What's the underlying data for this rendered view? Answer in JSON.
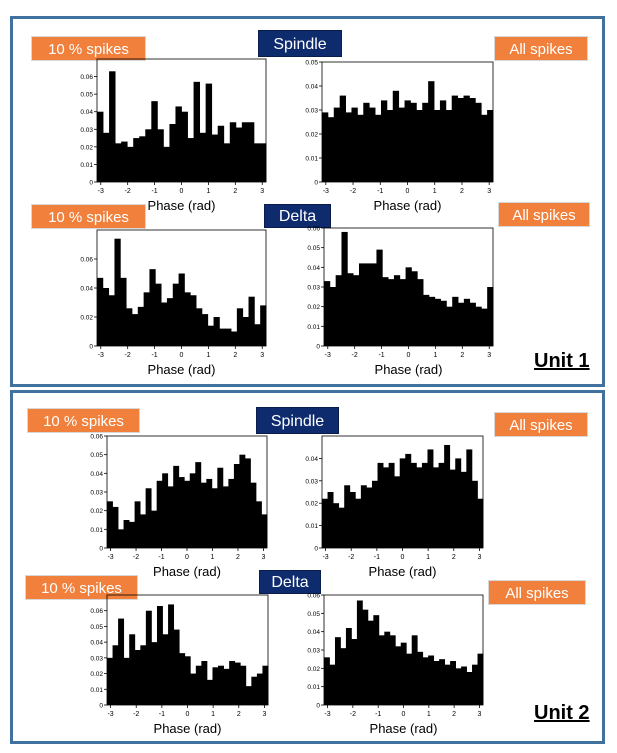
{
  "labels": {
    "ten_percent": "10 % spikes",
    "all_spikes": "All spikes",
    "spindle": "Spindle",
    "delta": "Delta",
    "unit1": "Unit 1",
    "unit2": "Unit 2"
  },
  "colors": {
    "border": "#41729f",
    "label_bg": "#f0803c",
    "osc_bg": "#0e2b6e",
    "bar": "#000000"
  },
  "chart_data": [
    {
      "id": "u1-spindle-10",
      "type": "bar",
      "xlabel": "Phase (rad)",
      "ylabel": "",
      "xlim": [
        -3.14,
        3.14
      ],
      "ylim": [
        0,
        0.07
      ],
      "xticks": [
        -3,
        -2,
        -1,
        0,
        1,
        2,
        3
      ],
      "yticks": [
        0,
        0.01,
        0.02,
        0.03,
        0.04,
        0.05,
        0.06
      ],
      "values": [
        0.04,
        0.028,
        0.063,
        0.022,
        0.023,
        0.02,
        0.025,
        0.026,
        0.03,
        0.046,
        0.03,
        0.02,
        0.033,
        0.043,
        0.04,
        0.025,
        0.057,
        0.028,
        0.056,
        0.027,
        0.032,
        0.022,
        0.034,
        0.031,
        0.034,
        0.034,
        0.022,
        0.022
      ]
    },
    {
      "id": "u1-spindle-all",
      "type": "bar",
      "xlabel": "Phase (rad)",
      "ylabel": "",
      "xlim": [
        -3.14,
        3.14
      ],
      "ylim": [
        0,
        0.05
      ],
      "xticks": [
        -3,
        -2,
        -1,
        0,
        1,
        2,
        3
      ],
      "yticks": [
        0,
        0.01,
        0.02,
        0.03,
        0.04,
        0.05
      ],
      "values": [
        0.029,
        0.027,
        0.031,
        0.036,
        0.029,
        0.031,
        0.028,
        0.033,
        0.031,
        0.028,
        0.034,
        0.03,
        0.038,
        0.031,
        0.034,
        0.033,
        0.03,
        0.033,
        0.042,
        0.03,
        0.034,
        0.03,
        0.036,
        0.035,
        0.036,
        0.035,
        0.033,
        0.028,
        0.03
      ]
    },
    {
      "id": "u1-delta-10",
      "type": "bar",
      "xlabel": "Phase (rad)",
      "ylabel": "",
      "xlim": [
        -3.14,
        3.14
      ],
      "ylim": [
        0,
        0.08
      ],
      "xticks": [
        -3,
        -2,
        -1,
        0,
        1,
        2,
        3
      ],
      "yticks": [
        0,
        0.02,
        0.04,
        0.06
      ],
      "values": [
        0.047,
        0.04,
        0.035,
        0.074,
        0.047,
        0.026,
        0.022,
        0.027,
        0.037,
        0.053,
        0.043,
        0.03,
        0.033,
        0.043,
        0.05,
        0.037,
        0.035,
        0.026,
        0.022,
        0.014,
        0.02,
        0.012,
        0.012,
        0.01,
        0.026,
        0.02,
        0.034,
        0.015,
        0.028
      ]
    },
    {
      "id": "u1-delta-all",
      "type": "bar",
      "xlabel": "Phase (rad)",
      "ylabel": "",
      "xlim": [
        -3.14,
        3.14
      ],
      "ylim": [
        0,
        0.06
      ],
      "xticks": [
        -3,
        -2,
        -1,
        0,
        1,
        2,
        3
      ],
      "yticks": [
        0,
        0.01,
        0.02,
        0.03,
        0.04,
        0.05,
        0.06
      ],
      "values": [
        0.033,
        0.03,
        0.036,
        0.058,
        0.037,
        0.036,
        0.042,
        0.042,
        0.042,
        0.049,
        0.035,
        0.034,
        0.036,
        0.034,
        0.04,
        0.038,
        0.034,
        0.026,
        0.025,
        0.024,
        0.023,
        0.02,
        0.025,
        0.022,
        0.024,
        0.022,
        0.02,
        0.019,
        0.03
      ]
    },
    {
      "id": "u2-spindle-10",
      "type": "bar",
      "xlabel": "Phase (rad)",
      "ylabel": "",
      "xlim": [
        -3.14,
        3.14
      ],
      "ylim": [
        0,
        0.06
      ],
      "xticks": [
        -3,
        -2,
        -1,
        0,
        1,
        2,
        3
      ],
      "yticks": [
        0,
        0.01,
        0.02,
        0.03,
        0.04,
        0.05,
        0.06
      ],
      "values": [
        0.025,
        0.022,
        0.01,
        0.015,
        0.014,
        0.025,
        0.018,
        0.032,
        0.02,
        0.036,
        0.04,
        0.033,
        0.044,
        0.038,
        0.036,
        0.04,
        0.046,
        0.035,
        0.037,
        0.032,
        0.043,
        0.033,
        0.037,
        0.045,
        0.05,
        0.048,
        0.035,
        0.025,
        0.018
      ]
    },
    {
      "id": "u2-spindle-all",
      "type": "bar",
      "xlabel": "Phase (rad)",
      "ylabel": "",
      "xlim": [
        -3.14,
        3.14
      ],
      "ylim": [
        0,
        0.05
      ],
      "xticks": [
        -3,
        -2,
        -1,
        0,
        1,
        2,
        3
      ],
      "yticks": [
        0,
        0.01,
        0.02,
        0.03,
        0.04
      ],
      "values": [
        0.022,
        0.025,
        0.02,
        0.018,
        0.028,
        0.025,
        0.022,
        0.028,
        0.027,
        0.03,
        0.038,
        0.036,
        0.038,
        0.032,
        0.04,
        0.042,
        0.038,
        0.036,
        0.038,
        0.044,
        0.036,
        0.038,
        0.046,
        0.035,
        0.04,
        0.034,
        0.044,
        0.03,
        0.022
      ]
    },
    {
      "id": "u2-delta-10",
      "type": "bar",
      "xlabel": "Phase (rad)",
      "ylabel": "",
      "xlim": [
        -3.14,
        3.14
      ],
      "ylim": [
        0,
        0.07
      ],
      "xticks": [
        -3,
        -2,
        -1,
        0,
        1,
        2,
        3
      ],
      "yticks": [
        0,
        0.01,
        0.02,
        0.03,
        0.04,
        0.05,
        0.06
      ],
      "values": [
        0.03,
        0.038,
        0.055,
        0.03,
        0.045,
        0.035,
        0.038,
        0.06,
        0.04,
        0.063,
        0.045,
        0.064,
        0.048,
        0.033,
        0.031,
        0.02,
        0.025,
        0.028,
        0.016,
        0.024,
        0.025,
        0.023,
        0.028,
        0.027,
        0.025,
        0.012,
        0.018,
        0.02,
        0.025
      ]
    },
    {
      "id": "u2-delta-all",
      "type": "bar",
      "xlabel": "Phase (rad)",
      "ylabel": "",
      "xlim": [
        -3.14,
        3.14
      ],
      "ylim": [
        0,
        0.06
      ],
      "xticks": [
        -3,
        -2,
        -1,
        0,
        1,
        2,
        3
      ],
      "yticks": [
        0,
        0.01,
        0.02,
        0.03,
        0.04,
        0.05,
        0.06
      ],
      "values": [
        0.026,
        0.022,
        0.037,
        0.031,
        0.042,
        0.036,
        0.057,
        0.052,
        0.046,
        0.049,
        0.038,
        0.04,
        0.038,
        0.032,
        0.034,
        0.028,
        0.038,
        0.029,
        0.026,
        0.027,
        0.024,
        0.025,
        0.022,
        0.024,
        0.02,
        0.021,
        0.018,
        0.022,
        0.028
      ]
    }
  ]
}
